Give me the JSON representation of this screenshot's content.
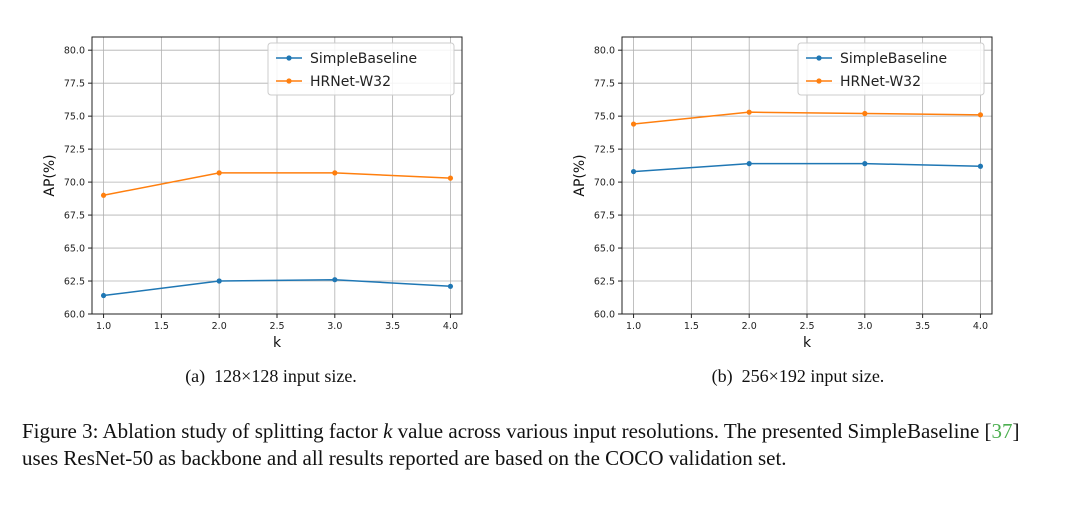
{
  "colors": {
    "simplebaseline": "#1f77b4",
    "hrnet": "#ff7f0e",
    "grid": "#b0b0b0",
    "reference": "#4caf50"
  },
  "chart_data": [
    {
      "type": "line",
      "panel_label": "(a)",
      "caption": "128×128 input size.",
      "x": [
        1.0,
        2.0,
        3.0,
        4.0
      ],
      "xticks": [
        "1.0",
        "1.5",
        "2.0",
        "2.5",
        "3.0",
        "3.5",
        "4.0"
      ],
      "yticks": [
        "60.0",
        "62.5",
        "65.0",
        "67.5",
        "70.0",
        "72.5",
        "75.0",
        "77.5",
        "80.0"
      ],
      "xlabel": "k",
      "ylabel": "AP(%)",
      "xlim": [
        0.9,
        4.1
      ],
      "ylim": [
        60.0,
        81.0
      ],
      "grid": true,
      "legend_position": "top-right",
      "series": [
        {
          "name": "SimpleBaseline",
          "values": [
            61.4,
            62.5,
            62.6,
            62.1
          ]
        },
        {
          "name": "HRNet-W32",
          "values": [
            69.0,
            70.7,
            70.7,
            70.3
          ]
        }
      ]
    },
    {
      "type": "line",
      "panel_label": "(b)",
      "caption": "256×192 input size.",
      "x": [
        1.0,
        2.0,
        3.0,
        4.0
      ],
      "xticks": [
        "1.0",
        "1.5",
        "2.0",
        "2.5",
        "3.0",
        "3.5",
        "4.0"
      ],
      "yticks": [
        "60.0",
        "62.5",
        "65.0",
        "67.5",
        "70.0",
        "72.5",
        "75.0",
        "77.5",
        "80.0"
      ],
      "xlabel": "k",
      "ylabel": "AP(%)",
      "xlim": [
        0.9,
        4.1
      ],
      "ylim": [
        60.0,
        81.0
      ],
      "grid": true,
      "legend_position": "top-right",
      "series": [
        {
          "name": "SimpleBaseline",
          "values": [
            70.8,
            71.4,
            71.4,
            71.2
          ]
        },
        {
          "name": "HRNet-W32",
          "values": [
            74.4,
            75.3,
            75.2,
            75.1
          ]
        }
      ]
    }
  ],
  "figure_caption": {
    "prefix": "Figure 3: Ablation study of splitting factor ",
    "variable": "k",
    "middle": " value across various input resolutions. The presented SimpleBaseline [",
    "reference": "37",
    "suffix": "] uses ResNet-50 as backbone and all results reported are based on the COCO validation set."
  }
}
